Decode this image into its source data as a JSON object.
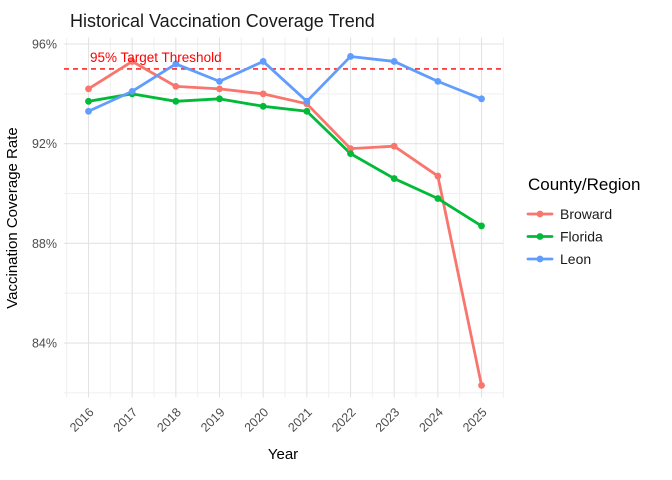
{
  "page": {
    "title": "Historical Vaccination Coverage Trend"
  },
  "colors": {
    "background": "#ffffff",
    "grid_major": "#e3e3e3",
    "grid_minor": "#efefef",
    "axis_text": "#4d4d4d",
    "threshold_red": "#ff0000",
    "broward": "#f8766d",
    "florida": "#00ba38",
    "leon": "#619cff"
  },
  "chart_data": {
    "type": "line",
    "title": "Historical Vaccination Coverage Trend",
    "xlabel": "Year",
    "ylabel": "Vaccination Coverage Rate",
    "categories": [
      "2016",
      "2017",
      "2018",
      "2019",
      "2020",
      "2021",
      "2022",
      "2023",
      "2024",
      "2025"
    ],
    "series": [
      {
        "name": "Broward",
        "color": "#f8766d",
        "values": [
          94.2,
          95.3,
          94.3,
          94.2,
          94.0,
          93.6,
          91.8,
          91.9,
          90.7,
          82.3
        ]
      },
      {
        "name": "Florida",
        "color": "#00ba38",
        "values": [
          93.7,
          94.0,
          93.7,
          93.8,
          93.5,
          93.3,
          91.6,
          90.6,
          89.8,
          88.7
        ]
      },
      {
        "name": "Leon",
        "color": "#619cff",
        "values": [
          93.3,
          94.1,
          95.2,
          94.5,
          95.3,
          93.7,
          95.5,
          95.3,
          94.5,
          93.8
        ]
      }
    ],
    "y_axis": {
      "major_ticks": [
        96,
        92,
        88,
        84
      ],
      "major_tick_labels": [
        "96%",
        "92%",
        "88%",
        "84%"
      ],
      "minor_ticks": [
        94,
        90,
        86,
        82
      ],
      "ylim": [
        81.5,
        96.3
      ]
    },
    "threshold": {
      "value": 95,
      "label": "95% Target Threshold",
      "color": "#ff0000"
    },
    "legend": {
      "title": "County/Region",
      "position": "right",
      "entries": [
        "Broward",
        "Florida",
        "Leon"
      ]
    },
    "grid": true
  }
}
